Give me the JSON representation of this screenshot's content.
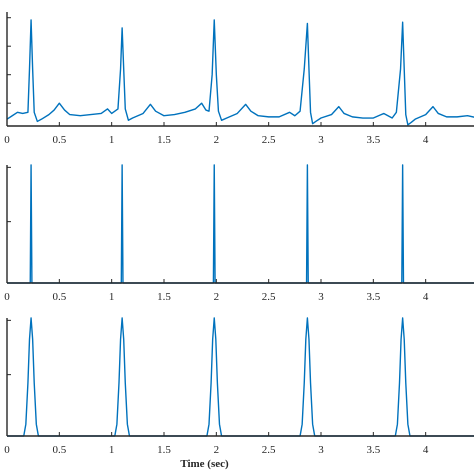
{
  "colors": {
    "series": "#0072BD",
    "axis": "#262626",
    "background": "#ffffff"
  },
  "chart_data": [
    {
      "type": "line",
      "xlim": [
        0,
        4.5
      ],
      "ylim": [
        0,
        1
      ],
      "xticks": [
        0,
        0.5,
        1,
        1.5,
        2,
        2.5,
        3,
        3.5,
        4
      ],
      "xtick_labels": [
        "0",
        "0.5",
        "1",
        "1.5",
        "2",
        "2.5",
        "3",
        "3.5",
        "4"
      ],
      "yticks": [
        0.2,
        0.45,
        0.7,
        0.95
      ],
      "ytick_labels": [
        "",
        "",
        "",
        ""
      ],
      "xlabel": "",
      "grid": false,
      "series": [
        {
          "x": [
            0,
            0.05,
            0.1,
            0.15,
            0.2,
            0.215,
            0.23,
            0.245,
            0.26,
            0.29,
            0.33,
            0.4,
            0.45,
            0.5,
            0.55,
            0.6,
            0.7,
            0.8,
            0.9,
            0.96,
            1.0,
            1.03,
            1.06,
            1.085,
            1.1,
            1.115,
            1.13,
            1.16,
            1.2,
            1.3,
            1.37,
            1.42,
            1.5,
            1.6,
            1.7,
            1.8,
            1.86,
            1.9,
            1.93,
            1.96,
            1.98,
            2.0,
            2.02,
            2.05,
            2.1,
            2.2,
            2.28,
            2.33,
            2.4,
            2.5,
            2.6,
            2.7,
            2.75,
            2.8,
            2.84,
            2.87,
            2.885,
            2.9,
            2.92,
            2.95,
            3.0,
            3.1,
            3.17,
            3.22,
            3.3,
            3.4,
            3.5,
            3.6,
            3.68,
            3.72,
            3.76,
            3.78,
            3.795,
            3.81,
            3.83,
            3.86,
            3.9,
            4.0,
            4.07,
            4.12,
            4.2,
            4.3,
            4.4,
            4.5
          ],
          "y": [
            0.06,
            0.09,
            0.12,
            0.11,
            0.12,
            0.5,
            0.93,
            0.5,
            0.12,
            0.04,
            0.06,
            0.1,
            0.14,
            0.2,
            0.14,
            0.1,
            0.09,
            0.1,
            0.11,
            0.15,
            0.11,
            0.13,
            0.15,
            0.5,
            0.86,
            0.5,
            0.15,
            0.05,
            0.07,
            0.11,
            0.19,
            0.13,
            0.09,
            0.1,
            0.12,
            0.15,
            0.2,
            0.14,
            0.13,
            0.45,
            0.93,
            0.45,
            0.13,
            0.05,
            0.07,
            0.11,
            0.19,
            0.13,
            0.09,
            0.08,
            0.08,
            0.12,
            0.09,
            0.13,
            0.5,
            0.9,
            0.5,
            0.12,
            0.02,
            0.04,
            0.07,
            0.1,
            0.17,
            0.11,
            0.08,
            0.07,
            0.07,
            0.11,
            0.07,
            0.12,
            0.5,
            0.91,
            0.5,
            0.1,
            0.01,
            0.03,
            0.06,
            0.1,
            0.17,
            0.11,
            0.08,
            0.08,
            0.09,
            0.07
          ]
        }
      ]
    },
    {
      "type": "line",
      "xlim": [
        0,
        4.5
      ],
      "ylim": [
        0,
        1
      ],
      "xticks": [
        0,
        0.5,
        1,
        1.5,
        2,
        2.5,
        3,
        3.5,
        4
      ],
      "xtick_labels": [
        "0",
        "0.5",
        "1",
        "1.5",
        "2",
        "2.5",
        "3",
        "3.5",
        "4"
      ],
      "yticks": [
        0.52,
        0.98
      ],
      "ytick_labels": [
        "",
        ""
      ],
      "xlabel": "",
      "grid": false,
      "series": [
        {
          "x": [
            0,
            0.222,
            0.23,
            0.238,
            1.092,
            1.1,
            1.108,
            1.972,
            1.98,
            1.988,
            2.862,
            2.87,
            2.878,
            3.772,
            3.78,
            3.788,
            4.5
          ],
          "y": [
            0,
            0,
            1,
            0,
            0,
            1,
            0,
            0,
            1,
            0,
            0,
            1,
            0,
            0,
            1,
            0,
            0
          ]
        }
      ]
    },
    {
      "type": "line",
      "xlim": [
        0,
        4.5
      ],
      "ylim": [
        0,
        1
      ],
      "xticks": [
        0,
        0.5,
        1,
        1.5,
        2,
        2.5,
        3,
        3.5,
        4
      ],
      "xtick_labels": [
        "0",
        "0.5",
        "1",
        "1.5",
        "2",
        "2.5",
        "3",
        "3.5",
        "4"
      ],
      "yticks": [
        0.52,
        0.98
      ],
      "ytick_labels": [
        "",
        ""
      ],
      "xlabel": "Time (sec)",
      "grid": false,
      "series": [
        {
          "x": [
            0,
            0.16,
            0.18,
            0.2,
            0.215,
            0.23,
            0.245,
            0.26,
            0.28,
            0.3,
            1.03,
            1.05,
            1.07,
            1.085,
            1.1,
            1.115,
            1.13,
            1.15,
            1.17,
            1.91,
            1.93,
            1.95,
            1.965,
            1.98,
            1.995,
            2.01,
            2.03,
            2.05,
            2.8,
            2.82,
            2.84,
            2.855,
            2.87,
            2.885,
            2.9,
            2.92,
            2.94,
            3.71,
            3.73,
            3.75,
            3.765,
            3.78,
            3.795,
            3.81,
            3.83,
            3.85,
            4.5
          ],
          "y": [
            0,
            0,
            0.1,
            0.45,
            0.82,
            1,
            0.82,
            0.45,
            0.1,
            0,
            0,
            0.1,
            0.45,
            0.82,
            1,
            0.82,
            0.45,
            0.1,
            0,
            0,
            0.1,
            0.45,
            0.82,
            1,
            0.82,
            0.45,
            0.1,
            0,
            0,
            0.1,
            0.45,
            0.82,
            1,
            0.82,
            0.45,
            0.1,
            0,
            0,
            0.1,
            0.45,
            0.82,
            1,
            0.82,
            0.45,
            0.1,
            0,
            0
          ]
        }
      ]
    }
  ]
}
